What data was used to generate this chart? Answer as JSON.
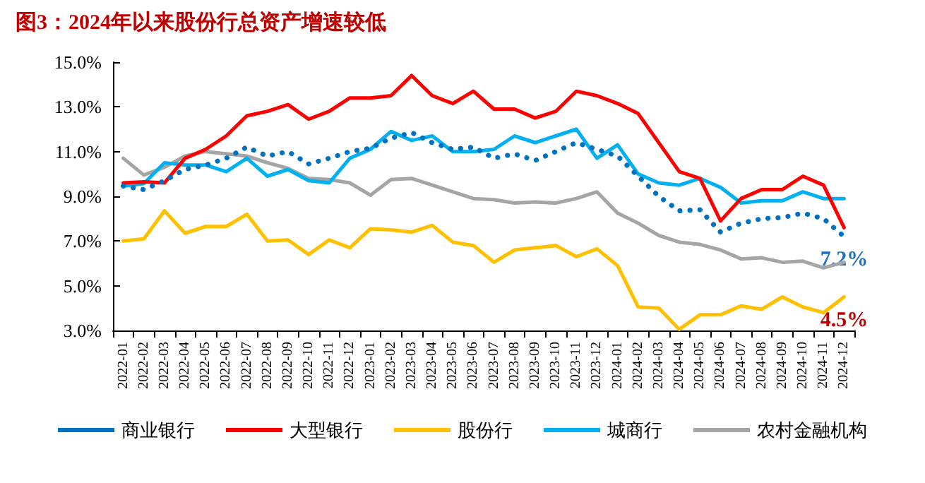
{
  "chart_data": {
    "type": "line",
    "title": "图3：2024年以来股份行总资产增速较低",
    "categories": [
      "2022-01",
      "2022-02",
      "2022-03",
      "2022-04",
      "2022-05",
      "2022-06",
      "2022-07",
      "2022-08",
      "2022-09",
      "2022-10",
      "2022-11",
      "2022-12",
      "2023-01",
      "2023-02",
      "2023-03",
      "2023-04",
      "2023-05",
      "2023-06",
      "2023-07",
      "2023-08",
      "2023-09",
      "2023-10",
      "2023-11",
      "2023-12",
      "2024-01",
      "2024-02",
      "2024-03",
      "2024-04",
      "2024-05",
      "2024-06",
      "2024-07",
      "2024-08",
      "2024-09",
      "2024-10",
      "2024-11",
      "2024-12"
    ],
    "series": [
      {
        "name": "商业银行",
        "color": "#0070c0",
        "line_style": "dotted",
        "values": [
          9.46,
          9.3,
          9.7,
          10.2,
          10.4,
          10.7,
          11.2,
          10.8,
          11.0,
          10.45,
          10.7,
          11.0,
          11.15,
          11.6,
          11.85,
          11.4,
          11.1,
          11.2,
          10.7,
          10.9,
          10.6,
          11.0,
          11.4,
          11.1,
          10.8,
          9.9,
          9.0,
          8.35,
          8.4,
          7.4,
          7.8,
          8.0,
          8.05,
          8.25,
          8.0,
          7.2
        ]
      },
      {
        "name": "大型银行",
        "color": "#ff0000",
        "line_style": "solid",
        "values": [
          9.6,
          9.65,
          9.6,
          10.7,
          11.1,
          11.7,
          12.6,
          12.8,
          13.1,
          12.45,
          12.8,
          13.4,
          13.4,
          13.5,
          14.4,
          13.5,
          13.15,
          13.7,
          12.9,
          12.9,
          12.5,
          12.8,
          13.7,
          13.5,
          13.15,
          12.7,
          11.4,
          10.1,
          9.8,
          7.9,
          8.9,
          9.3,
          9.3,
          9.9,
          9.5,
          7.6
        ]
      },
      {
        "name": "股份行",
        "color": "#ffc000",
        "line_style": "solid",
        "values": [
          7.0,
          7.1,
          8.35,
          7.35,
          7.65,
          7.65,
          8.2,
          7.0,
          7.05,
          6.4,
          7.05,
          6.7,
          7.55,
          7.5,
          7.4,
          7.7,
          6.95,
          6.8,
          6.05,
          6.6,
          6.7,
          6.8,
          6.3,
          6.65,
          5.9,
          4.05,
          4.0,
          3.05,
          3.7,
          3.7,
          4.1,
          3.95,
          4.5,
          4.05,
          3.8,
          4.5
        ]
      },
      {
        "name": "城商行",
        "color": "#00b0f0",
        "line_style": "solid",
        "values": [
          9.46,
          9.57,
          10.5,
          10.4,
          10.4,
          10.1,
          10.7,
          9.9,
          10.2,
          9.7,
          9.6,
          10.7,
          11.1,
          11.9,
          11.5,
          11.7,
          11.0,
          11.0,
          11.1,
          11.7,
          11.4,
          11.7,
          12.0,
          10.7,
          11.3,
          10.0,
          9.6,
          9.5,
          9.8,
          9.4,
          8.7,
          8.8,
          8.8,
          9.2,
          8.9,
          8.9
        ]
      },
      {
        "name": "农村金融机构",
        "color": "#a5a5a5",
        "line_style": "solid",
        "values": [
          10.7,
          9.95,
          10.3,
          10.8,
          11.0,
          10.9,
          10.8,
          10.5,
          10.25,
          9.8,
          9.75,
          9.6,
          9.05,
          9.75,
          9.8,
          9.5,
          9.2,
          8.9,
          8.85,
          8.7,
          8.75,
          8.7,
          8.9,
          9.2,
          8.25,
          7.8,
          7.25,
          6.95,
          6.85,
          6.6,
          6.2,
          6.25,
          6.05,
          6.1,
          5.8,
          6.05
        ]
      }
    ],
    "ylim": [
      3,
      15
    ],
    "yticks": [
      {
        "value": 3,
        "label": "3.0%"
      },
      {
        "value": 5,
        "label": "5.0%"
      },
      {
        "value": 7,
        "label": "7.0%"
      },
      {
        "value": 9,
        "label": "9.0%"
      },
      {
        "value": 11,
        "label": "11.0%"
      },
      {
        "value": 13,
        "label": "13.0%"
      },
      {
        "value": 15,
        "label": "15.0%"
      }
    ],
    "annotations": [
      {
        "text": "7.2%",
        "x": "2024-12",
        "y": 7.2
      },
      {
        "text": "4.5%",
        "x": "2024-12",
        "y": 4.5
      }
    ],
    "grid": false,
    "legend": "bottom",
    "marker": "none"
  }
}
